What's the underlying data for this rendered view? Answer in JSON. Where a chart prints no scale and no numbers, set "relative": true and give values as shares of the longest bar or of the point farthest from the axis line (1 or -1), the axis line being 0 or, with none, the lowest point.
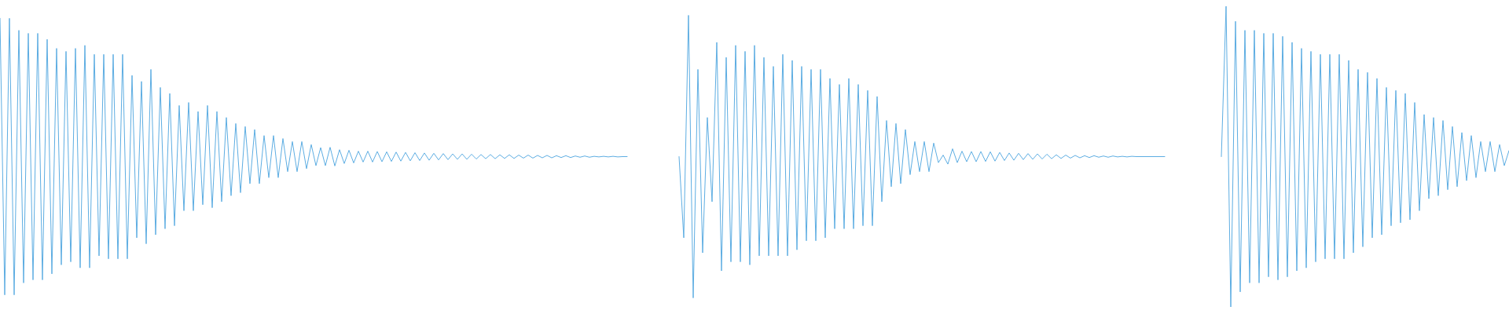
{
  "chart_data": {
    "type": "line",
    "relative": true,
    "tick_labels": false,
    "categories": [
      null,
      null,
      null,
      null,
      null,
      null,
      null,
      null,
      null,
      null,
      null,
      null,
      null,
      null,
      null,
      null,
      null,
      null,
      null,
      null,
      null,
      null,
      null,
      null,
      null,
      null,
      null,
      null,
      null,
      null,
      null,
      null,
      null,
      null,
      null,
      null,
      null,
      null,
      null,
      null,
      null,
      null,
      null,
      null,
      null,
      null,
      null,
      null,
      null,
      null,
      null,
      null,
      null,
      null,
      null,
      null,
      null,
      null,
      null,
      null,
      null,
      null,
      null,
      null,
      null,
      null,
      null,
      null,
      null,
      null,
      null,
      null,
      null,
      null,
      null,
      null,
      null,
      null,
      null,
      null,
      null,
      null,
      null,
      null,
      null,
      null,
      null,
      null,
      null,
      null,
      null,
      null,
      null,
      null,
      null,
      null,
      null,
      null,
      null,
      null,
      null,
      null,
      null,
      null,
      null,
      null,
      null,
      null,
      null,
      null,
      null,
      null,
      null,
      null,
      null,
      null,
      null,
      null,
      null,
      null,
      null,
      null,
      null,
      null,
      null,
      null,
      null,
      null,
      null,
      null,
      null,
      null,
      null,
      null,
      null,
      null,
      null,
      null,
      null,
      null,
      null,
      null,
      null,
      null,
      null,
      null,
      null,
      null,
      null,
      null,
      null,
      null,
      null,
      null,
      null,
      null,
      null,
      null,
      null,
      null,
      null,
      null,
      null,
      null,
      null,
      null,
      null,
      null,
      null,
      null,
      null,
      null,
      null,
      null,
      null,
      null,
      null,
      null,
      null,
      null,
      null,
      null,
      null,
      null,
      null,
      null,
      null,
      null,
      null,
      null,
      null,
      null,
      null,
      null,
      null,
      null,
      null,
      null,
      null,
      null,
      null,
      null,
      null,
      null,
      null,
      null,
      null,
      null,
      null,
      null,
      null,
      null,
      null,
      null,
      null,
      null,
      null,
      null,
      null,
      null,
      null,
      null,
      null,
      null,
      null,
      null,
      null,
      null,
      null,
      null,
      null,
      null,
      null,
      null,
      null,
      null,
      null,
      null,
      null,
      null,
      null,
      null,
      null,
      null,
      null,
      null,
      null,
      null,
      null,
      null,
      null,
      null,
      null,
      null,
      null,
      null,
      null,
      null,
      null,
      null,
      null,
      null,
      null,
      null,
      null,
      null,
      null,
      null,
      null,
      null,
      null,
      null,
      null,
      null,
      null,
      null,
      null,
      null,
      null,
      null,
      null,
      null,
      null,
      null,
      null,
      null,
      null,
      null,
      null,
      null,
      null,
      null,
      null,
      null,
      null,
      null,
      null,
      null,
      null,
      null,
      null,
      null,
      null,
      null,
      null,
      null,
      null,
      null,
      null,
      null,
      null,
      null,
      null,
      null,
      null,
      null,
      null,
      null,
      null,
      null,
      null
    ],
    "series": [
      {
        "color": "#5dade2",
        "values": [
          0.96,
          0.04,
          0.96,
          0.04,
          0.92,
          0.08,
          0.91,
          0.09,
          0.91,
          0.09,
          0.89,
          0.11,
          0.86,
          0.14,
          0.85,
          0.15,
          0.86,
          0.13,
          0.87,
          0.13,
          0.84,
          0.17,
          0.84,
          0.16,
          0.84,
          0.16,
          0.84,
          0.16,
          0.77,
          0.23,
          0.75,
          0.21,
          0.79,
          0.24,
          0.73,
          0.26,
          0.71,
          0.27,
          0.67,
          0.32,
          0.68,
          0.32,
          0.65,
          0.34,
          0.67,
          0.33,
          0.65,
          0.35,
          0.63,
          0.37,
          0.61,
          0.38,
          0.6,
          0.41,
          0.59,
          0.41,
          0.57,
          0.43,
          0.57,
          0.43,
          0.56,
          0.45,
          0.55,
          0.45,
          0.55,
          0.46,
          0.54,
          0.47,
          0.53,
          0.47,
          0.531,
          0.469,
          0.523,
          0.477,
          0.521,
          0.479,
          0.518,
          0.482,
          0.518,
          0.482,
          0.517,
          0.483,
          0.516,
          0.484,
          0.515,
          0.485,
          0.514,
          0.486,
          0.513,
          0.487,
          0.512,
          0.488,
          0.511,
          0.489,
          0.51,
          0.49,
          0.509,
          0.491,
          0.509,
          0.491,
          0.508,
          0.492,
          0.507,
          0.493,
          0.507,
          0.493,
          0.506,
          0.494,
          0.506,
          0.494,
          0.505,
          0.495,
          0.505,
          0.495,
          0.504,
          0.496,
          0.504,
          0.496,
          0.503,
          0.497,
          0.503,
          0.497,
          0.502,
          0.498,
          0.502,
          0.498,
          0.501,
          0.499,
          0.501,
          0.499,
          0.501,
          0.499,
          0.5,
          0.5,
          null,
          null,
          null,
          null,
          null,
          null,
          null,
          null,
          null,
          null,
          null,
          null,
          null,
          null,
          null,
          null,
          null,
          null,
          null,
          null,
          null,
          null,
          null,
          null,
          null,
          null,
          null,
          null,
          null,
          null,
          null,
          null,
          null,
          null,
          null,
          null,
          null,
          null,
          null,
          null,
          null,
          null,
          null,
          null,
          null,
          null,
          null,
          null,
          null,
          null,
          null,
          null,
          null,
          null,
          null,
          null,
          null,
          null,
          null,
          null,
          null,
          null,
          null,
          null,
          null,
          null,
          null,
          null,
          null,
          null,
          null,
          null,
          null,
          null,
          null,
          null,
          null,
          null,
          null,
          null,
          null,
          null,
          null,
          null,
          null,
          null,
          null,
          null,
          null,
          null,
          null,
          null,
          null,
          null,
          null,
          null,
          null,
          null,
          null,
          null,
          null,
          null,
          null,
          null,
          null,
          null,
          null,
          null,
          null,
          null,
          null,
          null,
          null,
          null,
          null,
          null,
          null,
          null,
          null,
          null,
          null,
          null,
          null,
          null,
          null,
          null,
          null,
          null,
          null,
          null,
          null,
          null,
          null,
          null,
          null,
          null,
          null,
          null,
          null,
          null,
          null,
          null,
          null,
          null,
          null,
          null,
          null,
          null,
          null,
          null,
          null,
          null,
          null,
          null,
          null,
          null,
          null,
          null,
          null,
          null,
          null,
          null,
          null,
          null,
          null,
          null,
          null,
          null,
          null,
          null,
          null,
          null,
          null,
          null,
          null,
          null,
          null,
          null,
          null,
          null,
          null,
          null,
          null,
          null,
          null,
          null,
          null
        ]
      },
      {
        "color": "#5dade2",
        "values": [
          null,
          null,
          null,
          null,
          null,
          null,
          null,
          null,
          null,
          null,
          null,
          null,
          null,
          null,
          null,
          null,
          null,
          null,
          null,
          null,
          null,
          null,
          null,
          null,
          null,
          null,
          null,
          null,
          null,
          null,
          null,
          null,
          null,
          null,
          null,
          null,
          null,
          null,
          null,
          null,
          null,
          null,
          null,
          null,
          null,
          null,
          null,
          null,
          null,
          null,
          null,
          null,
          null,
          null,
          null,
          null,
          null,
          null,
          null,
          null,
          null,
          null,
          null,
          null,
          null,
          null,
          null,
          null,
          null,
          null,
          null,
          null,
          null,
          null,
          null,
          null,
          null,
          null,
          null,
          null,
          null,
          null,
          null,
          null,
          null,
          null,
          null,
          null,
          null,
          null,
          null,
          null,
          null,
          null,
          null,
          null,
          null,
          null,
          null,
          null,
          null,
          null,
          null,
          null,
          null,
          null,
          null,
          null,
          null,
          null,
          null,
          null,
          null,
          null,
          null,
          null,
          null,
          null,
          null,
          null,
          null,
          null,
          null,
          null,
          null,
          null,
          null,
          null,
          null,
          null,
          null,
          null,
          null,
          null,
          null,
          null,
          null,
          null,
          null,
          null,
          null,
          null,
          null,
          null,
          0.5,
          0.23,
          0.97,
          0.03,
          0.79,
          0.18,
          0.63,
          0.35,
          0.88,
          0.12,
          0.83,
          0.15,
          0.87,
          0.15,
          0.85,
          0.14,
          0.87,
          0.17,
          0.83,
          0.17,
          0.8,
          0.17,
          0.84,
          0.17,
          0.82,
          0.19,
          0.8,
          0.22,
          0.79,
          0.22,
          0.79,
          0.23,
          0.76,
          0.26,
          0.74,
          0.26,
          0.76,
          0.26,
          0.74,
          0.27,
          0.72,
          0.27,
          0.7,
          0.35,
          0.62,
          0.4,
          0.61,
          0.41,
          0.59,
          0.44,
          0.55,
          0.45,
          0.55,
          0.45,
          0.545,
          0.48,
          0.505,
          0.475,
          0.526,
          0.48,
          0.518,
          0.483,
          0.517,
          0.483,
          0.517,
          0.484,
          0.516,
          0.485,
          0.514,
          0.487,
          0.512,
          0.488,
          0.511,
          0.49,
          0.51,
          0.491,
          0.509,
          0.492,
          0.508,
          0.493,
          0.506,
          0.494,
          0.505,
          0.495,
          0.504,
          0.496,
          0.503,
          0.497,
          0.503,
          0.498,
          0.502,
          0.498,
          0.502,
          0.499,
          0.501,
          0.499,
          0.501,
          0.5,
          0.5,
          0.5,
          0.5,
          0.5,
          0.5,
          0.5,
          null,
          null,
          null,
          null,
          null,
          null,
          null,
          null,
          null,
          null,
          null,
          null,
          null,
          null,
          null,
          null,
          null,
          null,
          null,
          null,
          null,
          null,
          null,
          null,
          null,
          null,
          null,
          null,
          null,
          null,
          null,
          null,
          null,
          null,
          null,
          null,
          null,
          null,
          null,
          null,
          null,
          null,
          null,
          null,
          null,
          null,
          null,
          null,
          null,
          null,
          null,
          null,
          null,
          null,
          null,
          null,
          null,
          null,
          null,
          null,
          null,
          null,
          null,
          null,
          null,
          null,
          null,
          null,
          null,
          null,
          null,
          null,
          null
        ]
      },
      {
        "color": "#5dade2",
        "values": [
          null,
          null,
          null,
          null,
          null,
          null,
          null,
          null,
          null,
          null,
          null,
          null,
          null,
          null,
          null,
          null,
          null,
          null,
          null,
          null,
          null,
          null,
          null,
          null,
          null,
          null,
          null,
          null,
          null,
          null,
          null,
          null,
          null,
          null,
          null,
          null,
          null,
          null,
          null,
          null,
          null,
          null,
          null,
          null,
          null,
          null,
          null,
          null,
          null,
          null,
          null,
          null,
          null,
          null,
          null,
          null,
          null,
          null,
          null,
          null,
          null,
          null,
          null,
          null,
          null,
          null,
          null,
          null,
          null,
          null,
          null,
          null,
          null,
          null,
          null,
          null,
          null,
          null,
          null,
          null,
          null,
          null,
          null,
          null,
          null,
          null,
          null,
          null,
          null,
          null,
          null,
          null,
          null,
          null,
          null,
          null,
          null,
          null,
          null,
          null,
          null,
          null,
          null,
          null,
          null,
          null,
          null,
          null,
          null,
          null,
          null,
          null,
          null,
          null,
          null,
          null,
          null,
          null,
          null,
          null,
          null,
          null,
          null,
          null,
          null,
          null,
          null,
          null,
          null,
          null,
          null,
          null,
          null,
          null,
          null,
          null,
          null,
          null,
          null,
          null,
          null,
          null,
          null,
          null,
          null,
          null,
          null,
          null,
          null,
          null,
          null,
          null,
          null,
          null,
          null,
          null,
          null,
          null,
          null,
          null,
          null,
          null,
          null,
          null,
          null,
          null,
          null,
          null,
          null,
          null,
          null,
          null,
          null,
          null,
          null,
          null,
          null,
          null,
          null,
          null,
          null,
          null,
          null,
          null,
          null,
          null,
          null,
          null,
          null,
          null,
          null,
          null,
          null,
          null,
          null,
          null,
          null,
          null,
          null,
          null,
          null,
          null,
          null,
          null,
          null,
          null,
          null,
          null,
          null,
          null,
          null,
          null,
          null,
          null,
          null,
          null,
          null,
          null,
          null,
          null,
          null,
          null,
          null,
          null,
          null,
          null,
          null,
          null,
          null,
          null,
          null,
          null,
          null,
          null,
          null,
          null,
          null,
          null,
          null,
          null,
          null,
          null,
          null,
          null,
          null,
          null,
          null,
          null,
          null,
          null,
          null,
          null,
          null,
          null,
          null,
          null,
          null,
          null,
          null,
          0.5,
          1,
          0,
          0.95,
          0.05,
          0.92,
          0.08,
          0.92,
          0.08,
          0.91,
          0.1,
          0.91,
          0.09,
          0.9,
          0.1,
          0.88,
          0.12,
          0.86,
          0.13,
          0.85,
          0.15,
          0.84,
          0.16,
          0.84,
          0.16,
          0.84,
          0.16,
          0.82,
          0.18,
          0.79,
          0.2,
          0.78,
          0.23,
          0.76,
          0.24,
          0.73,
          0.27,
          0.72,
          0.28,
          0.71,
          0.29,
          0.68,
          0.32,
          0.64,
          0.36,
          0.63,
          0.37,
          0.62,
          0.39,
          0.6,
          0.4,
          0.58,
          0.42,
          0.57,
          0.43,
          0.55,
          0.45,
          0.55,
          0.45,
          0.54,
          0.47,
          0.52
        ]
      }
    ]
  }
}
